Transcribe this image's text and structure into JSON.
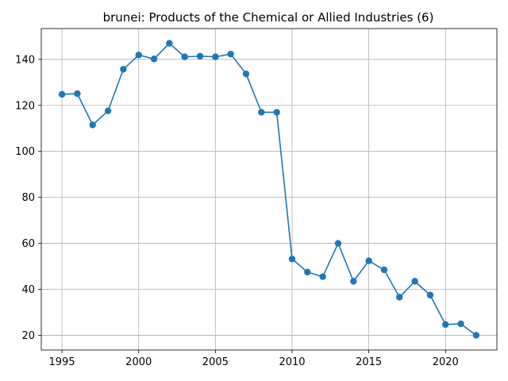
{
  "chart_data": {
    "type": "line",
    "title": "brunei: Products of the Chemical or Allied Industries (6)",
    "xlabel": "",
    "ylabel": "",
    "xlim": [
      1993.65,
      2023.35
    ],
    "ylim": [
      13.6,
      153.4
    ],
    "xticks": [
      1995,
      2000,
      2005,
      2010,
      2015,
      2020
    ],
    "yticks": [
      20,
      40,
      60,
      80,
      100,
      120,
      140
    ],
    "grid": true,
    "color": "#1f77b4",
    "marker": "circle",
    "series": [
      {
        "x": [
          1995,
          1996,
          1997,
          1998,
          1999,
          2000,
          2001,
          2002,
          2003,
          2004,
          2005,
          2006,
          2007,
          2008,
          2009,
          2010,
          2011,
          2012,
          2013,
          2014,
          2015,
          2016,
          2017,
          2018,
          2019,
          2020,
          2021,
          2022
        ],
        "values": [
          124.8,
          125.1,
          111.5,
          117.6,
          135.7,
          141.9,
          140.2,
          147.0,
          141.1,
          141.4,
          141.1,
          142.3,
          133.7,
          117.0,
          117.0,
          53.2,
          47.5,
          45.5,
          60.0,
          43.5,
          52.4,
          48.5,
          36.6,
          43.5,
          37.5,
          24.7,
          25.0,
          20.0
        ]
      }
    ]
  }
}
